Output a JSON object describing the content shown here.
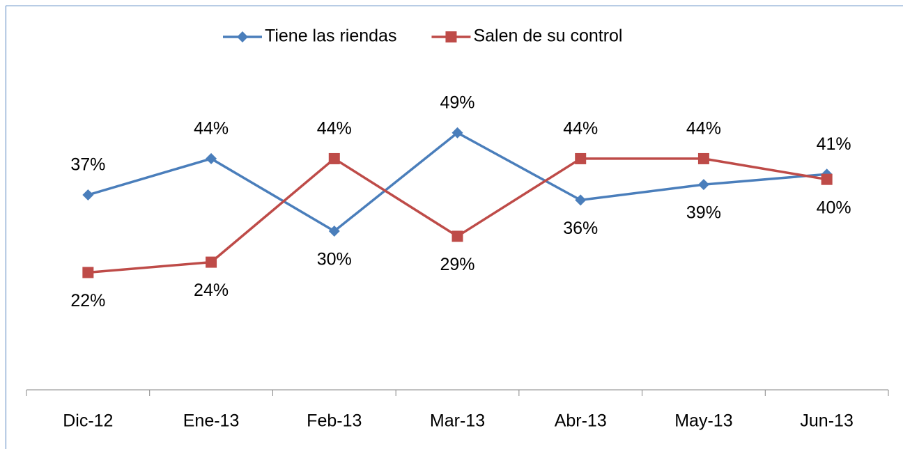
{
  "chart_data": {
    "type": "line",
    "categories": [
      "Dic-12",
      "Ene-13",
      "Feb-13",
      "Mar-13",
      "Abr-13",
      "May-13",
      "Jun-13"
    ],
    "series": [
      {
        "name": "Tiene las riendas",
        "color": "#4a7ebb",
        "marker": "diamond",
        "values": [
          37,
          44,
          30,
          49,
          36,
          39,
          41
        ],
        "value_labels": [
          "37%",
          "44%",
          "30%",
          "49%",
          "36%",
          "39%",
          "41%"
        ]
      },
      {
        "name": "Salen de su control",
        "color": "#be4b48",
        "marker": "square",
        "values": [
          22,
          24,
          44,
          29,
          44,
          44,
          40
        ],
        "value_labels": [
          "22%",
          "24%",
          "44%",
          "29%",
          "44%",
          "44%",
          "40%"
        ]
      }
    ],
    "ylim": [
      0,
      60
    ],
    "legend": "top"
  }
}
